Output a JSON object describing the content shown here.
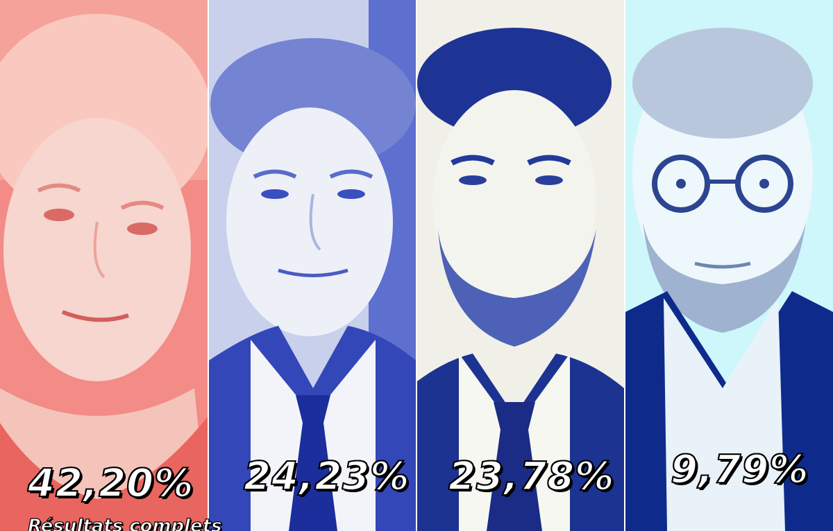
{
  "panels": [
    {
      "id": "candidate-1",
      "tint": "#f06d6d",
      "light": "#f6d9d4",
      "result": "42,20%"
    },
    {
      "id": "candidate-2",
      "tint": "#3b4fc4",
      "light": "#e8ecf6",
      "result": "24,23%"
    },
    {
      "id": "candidate-3",
      "tint": "#1e3a9e",
      "light": "#f1f1ea",
      "result": "23,78%"
    },
    {
      "id": "candidate-4",
      "tint": "#0d2a8a",
      "light": "#cdf7fb",
      "result": "9,79%"
    }
  ],
  "footer": {
    "link_label": "Résultats complets"
  }
}
